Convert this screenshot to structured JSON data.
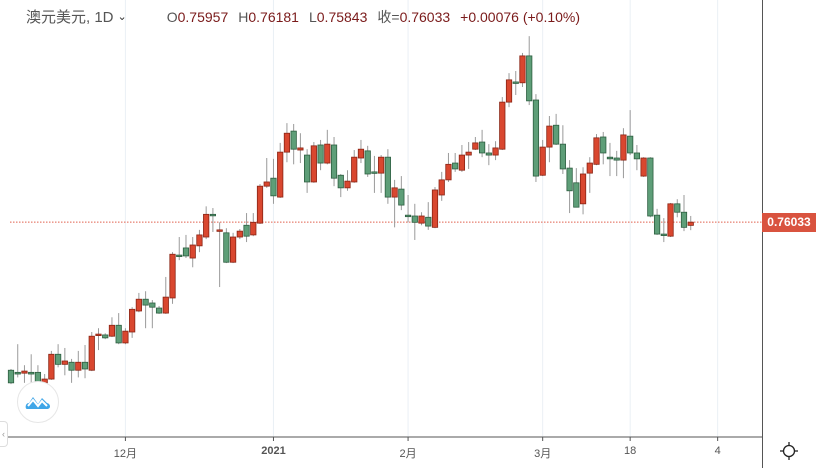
{
  "header": {
    "symbol": "澳元美元, 1D",
    "open_label": "O",
    "open": "0.75957",
    "high_label": "H",
    "high": "0.76181",
    "low_label": "L",
    "low": "0.75843",
    "close_label": "收=",
    "close": "0.76033",
    "change": "+0.00076 (+0.10%)"
  },
  "price_tag": "0.76033",
  "colors": {
    "up": "#d9472f",
    "up_border": "#8a2414",
    "down": "#5e9e78",
    "down_border": "#2d5e40",
    "wick": "#9a9a9a",
    "last_line": "#e0604d"
  },
  "chart_data": {
    "type": "candlestick",
    "title": "澳元美元, 1D",
    "last_price": 0.76033,
    "x_ticks": [
      "12月",
      "2021",
      "2月",
      "3月",
      "18",
      "4"
    ],
    "x_tick_index": [
      17,
      39,
      59,
      79,
      92,
      105
    ],
    "ylim": [
      0.7085,
      0.8132
    ],
    "ohlc": [
      [
        0.7251,
        0.7254,
        0.7218,
        0.7221
      ],
      [
        0.7246,
        0.7313,
        0.7234,
        0.7242
      ],
      [
        0.7244,
        0.7263,
        0.7221,
        0.7249
      ],
      [
        0.7246,
        0.7289,
        0.7221,
        0.7242
      ],
      [
        0.7246,
        0.7263,
        0.7218,
        0.7221
      ],
      [
        0.7221,
        0.7242,
        0.7218,
        0.723
      ],
      [
        0.723,
        0.7297,
        0.7228,
        0.7289
      ],
      [
        0.7289,
        0.7313,
        0.7258,
        0.7265
      ],
      [
        0.7265,
        0.7304,
        0.7239,
        0.7273
      ],
      [
        0.727,
        0.7278,
        0.7221,
        0.7251
      ],
      [
        0.7251,
        0.7297,
        0.7234,
        0.727
      ],
      [
        0.727,
        0.7311,
        0.7232,
        0.7254
      ],
      [
        0.7251,
        0.7342,
        0.7249,
        0.7332
      ],
      [
        0.7335,
        0.7351,
        0.7299,
        0.7337
      ],
      [
        0.7335,
        0.7339,
        0.7325,
        0.7328
      ],
      [
        0.7332,
        0.7377,
        0.733,
        0.7358
      ],
      [
        0.7358,
        0.7387,
        0.7313,
        0.7316
      ],
      [
        0.7316,
        0.7351,
        0.7313,
        0.7344
      ],
      [
        0.7342,
        0.7401,
        0.7328,
        0.7396
      ],
      [
        0.7392,
        0.7435,
        0.7389,
        0.742
      ],
      [
        0.742,
        0.7439,
        0.7351,
        0.7406
      ],
      [
        0.7411,
        0.7418,
        0.7351,
        0.7401
      ],
      [
        0.7399,
        0.7404,
        0.7385,
        0.7387
      ],
      [
        0.7387,
        0.7473,
        0.7385,
        0.7425
      ],
      [
        0.7423,
        0.7532,
        0.7409,
        0.7527
      ],
      [
        0.7525,
        0.7568,
        0.7513,
        0.7523
      ],
      [
        0.7542,
        0.7573,
        0.7518,
        0.7523
      ],
      [
        0.7518,
        0.7568,
        0.7496,
        0.7549
      ],
      [
        0.7547,
        0.7585,
        0.7532,
        0.7573
      ],
      [
        0.7568,
        0.7641,
        0.7563,
        0.7622
      ],
      [
        0.7622,
        0.7637,
        0.758,
        0.762
      ],
      [
        0.7582,
        0.7603,
        0.7449,
        0.7585
      ],
      [
        0.7578,
        0.7589,
        0.7506,
        0.7508
      ],
      [
        0.7508,
        0.7578,
        0.7506,
        0.7568
      ],
      [
        0.7568,
        0.7587,
        0.7563,
        0.7582
      ],
      [
        0.7596,
        0.7625,
        0.7556,
        0.757
      ],
      [
        0.7573,
        0.7625,
        0.757,
        0.7603
      ],
      [
        0.7601,
        0.7694,
        0.7599,
        0.7689
      ],
      [
        0.7689,
        0.7756,
        0.7685,
        0.7699
      ],
      [
        0.7708,
        0.7754,
        0.7647,
        0.7666
      ],
      [
        0.7663,
        0.7792,
        0.7661,
        0.777
      ],
      [
        0.777,
        0.7839,
        0.7746,
        0.7815
      ],
      [
        0.782,
        0.7837,
        0.7741,
        0.7777
      ],
      [
        0.7775,
        0.7815,
        0.7744,
        0.778
      ],
      [
        0.7763,
        0.7777,
        0.7673,
        0.7699
      ],
      [
        0.7699,
        0.7794,
        0.7697,
        0.7785
      ],
      [
        0.7787,
        0.7799,
        0.7727,
        0.7744
      ],
      [
        0.7744,
        0.7823,
        0.7741,
        0.7789
      ],
      [
        0.7787,
        0.7806,
        0.7689,
        0.7708
      ],
      [
        0.7715,
        0.7718,
        0.7663,
        0.7685
      ],
      [
        0.7685,
        0.7727,
        0.7678,
        0.7701
      ],
      [
        0.7699,
        0.7775,
        0.7697,
        0.7758
      ],
      [
        0.7756,
        0.7799,
        0.7744,
        0.7777
      ],
      [
        0.7773,
        0.7785,
        0.7711,
        0.7718
      ],
      [
        0.7723,
        0.7761,
        0.7673,
        0.772
      ],
      [
        0.772,
        0.7763,
        0.7673,
        0.7758
      ],
      [
        0.7758,
        0.7777,
        0.7647,
        0.7663
      ],
      [
        0.7663,
        0.7704,
        0.7591,
        0.7685
      ],
      [
        0.7682,
        0.7713,
        0.7632,
        0.7644
      ],
      [
        0.762,
        0.7668,
        0.7603,
        0.7618
      ],
      [
        0.7618,
        0.7647,
        0.7561,
        0.7603
      ],
      [
        0.7601,
        0.7627,
        0.7596,
        0.7618
      ],
      [
        0.7615,
        0.7651,
        0.7585,
        0.7594
      ],
      [
        0.7591,
        0.7687,
        0.7589,
        0.768
      ],
      [
        0.7668,
        0.7723,
        0.7654,
        0.7704
      ],
      [
        0.7704,
        0.7768,
        0.7699,
        0.7741
      ],
      [
        0.7744,
        0.7768,
        0.7723,
        0.773
      ],
      [
        0.7727,
        0.7787,
        0.7723,
        0.7763
      ],
      [
        0.7763,
        0.7794,
        0.773,
        0.777
      ],
      [
        0.7777,
        0.7806,
        0.7775,
        0.7792
      ],
      [
        0.7794,
        0.7823,
        0.7758,
        0.7768
      ],
      [
        0.7768,
        0.7789,
        0.7739,
        0.7763
      ],
      [
        0.7763,
        0.7796,
        0.7751,
        0.778
      ],
      [
        0.7777,
        0.7901,
        0.7775,
        0.7889
      ],
      [
        0.7889,
        0.7958,
        0.7877,
        0.7942
      ],
      [
        0.7937,
        0.7963,
        0.7906,
        0.7935
      ],
      [
        0.7935,
        0.8006,
        0.7925,
        0.7999
      ],
      [
        0.7999,
        0.8046,
        0.7882,
        0.7892
      ],
      [
        0.7894,
        0.7908,
        0.7699,
        0.7713
      ],
      [
        0.7715,
        0.7799,
        0.7713,
        0.7782
      ],
      [
        0.7782,
        0.7856,
        0.7746,
        0.7832
      ],
      [
        0.7834,
        0.7861,
        0.7787,
        0.7789
      ],
      [
        0.7789,
        0.7834,
        0.7718,
        0.773
      ],
      [
        0.7732,
        0.7751,
        0.7625,
        0.7678
      ],
      [
        0.7697,
        0.7732,
        0.7639,
        0.7639
      ],
      [
        0.7647,
        0.7734,
        0.7622,
        0.7718
      ],
      [
        0.772,
        0.7758,
        0.7673,
        0.7744
      ],
      [
        0.7741,
        0.7813,
        0.7739,
        0.7804
      ],
      [
        0.7806,
        0.7818,
        0.7741,
        0.7768
      ],
      [
        0.7758,
        0.7792,
        0.7713,
        0.7754
      ],
      [
        0.7756,
        0.7773,
        0.7713,
        0.7751
      ],
      [
        0.7751,
        0.7827,
        0.7708,
        0.7811
      ],
      [
        0.7808,
        0.787,
        0.7763,
        0.7768
      ],
      [
        0.7768,
        0.7787,
        0.7727,
        0.7754
      ],
      [
        0.7713,
        0.7758,
        0.7711,
        0.7756
      ],
      [
        0.7756,
        0.7758,
        0.7615,
        0.7618
      ],
      [
        0.762,
        0.7635,
        0.7573,
        0.7575
      ],
      [
        0.7575,
        0.7613,
        0.7556,
        0.7573
      ],
      [
        0.757,
        0.7649,
        0.7568,
        0.7647
      ],
      [
        0.7647,
        0.7658,
        0.7615,
        0.7627
      ],
      [
        0.7627,
        0.7668,
        0.7582,
        0.7591
      ],
      [
        0.75957,
        0.76181,
        0.75843,
        0.76033
      ]
    ]
  }
}
